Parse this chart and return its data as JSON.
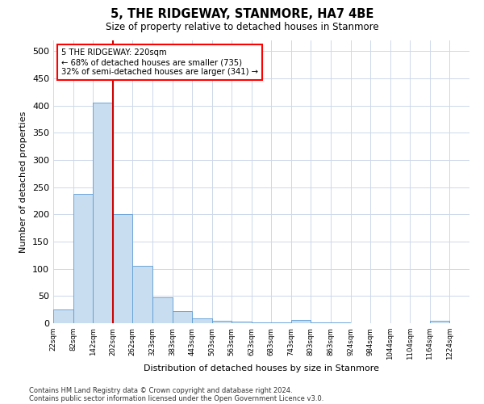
{
  "title": "5, THE RIDGEWAY, STANMORE, HA7 4BE",
  "subtitle": "Size of property relative to detached houses in Stanmore",
  "xlabel": "Distribution of detached houses by size in Stanmore",
  "ylabel": "Number of detached properties",
  "bar_color": "#c8ddf0",
  "bar_edge_color": "#5b9bd5",
  "marker_color": "#cc0000",
  "marker_value": 202,
  "bin_starts": [
    22,
    82,
    142,
    202,
    262,
    323,
    383,
    443,
    503,
    563,
    623,
    683,
    743,
    803,
    863,
    924,
    984,
    1044,
    1104,
    1164
  ],
  "bin_width": 60,
  "bin_labels": [
    "22sqm",
    "82sqm",
    "142sqm",
    "202sqm",
    "262sqm",
    "323sqm",
    "383sqm",
    "443sqm",
    "503sqm",
    "563sqm",
    "623sqm",
    "683sqm",
    "743sqm",
    "803sqm",
    "863sqm",
    "924sqm",
    "984sqm",
    "1044sqm",
    "1104sqm",
    "1164sqm",
    "1224sqm"
  ],
  "bar_heights": [
    25,
    238,
    405,
    200,
    105,
    48,
    22,
    9,
    5,
    3,
    2,
    1,
    6,
    1,
    1,
    0,
    0,
    0,
    0,
    4
  ],
  "xlim_start": 22,
  "xlim_end": 1284,
  "ylim": [
    0,
    520
  ],
  "yticks": [
    0,
    50,
    100,
    150,
    200,
    250,
    300,
    350,
    400,
    450,
    500
  ],
  "annotation_line1": "5 THE RIDGEWAY: 220sqm",
  "annotation_line2": "← 68% of detached houses are smaller (735)",
  "annotation_line3": "32% of semi-detached houses are larger (341) →",
  "footnote1": "Contains HM Land Registry data © Crown copyright and database right 2024.",
  "footnote2": "Contains public sector information licensed under the Open Government Licence v3.0.",
  "background_color": "#ffffff",
  "grid_color": "#cdd8ea"
}
